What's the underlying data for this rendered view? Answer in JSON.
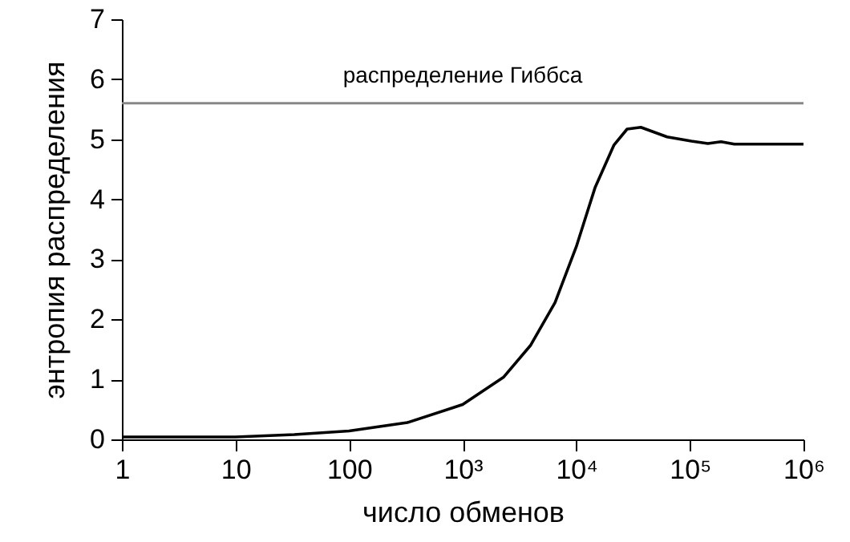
{
  "chart_data": {
    "type": "line",
    "xlabel": "число обменов",
    "ylabel": "энтропия  распределения",
    "x": [
      1,
      10,
      33,
      100,
      326,
      1000,
      2300,
      3970,
      6500,
      10000,
      14600,
      21400,
      28000,
      37000,
      63000,
      103000,
      144000,
      188000,
      246000,
      1000000
    ],
    "values": [
      0.04,
      0.04,
      0.08,
      0.14,
      0.28,
      0.58,
      1.04,
      1.57,
      2.28,
      3.21,
      4.19,
      4.9,
      5.17,
      5.2,
      5.04,
      4.97,
      4.93,
      4.96,
      4.92,
      4.92
    ],
    "color": "#000000",
    "log": "x",
    "xlim": [
      1,
      1000000
    ],
    "xticks": [
      1,
      10,
      100,
      {
        "value": 1000,
        "label": "10³"
      },
      {
        "value": 10000,
        "label": "10⁴"
      },
      {
        "value": 100000,
        "label": "10⁵"
      },
      {
        "value": 1000000,
        "label": "10⁶"
      }
    ],
    "ylim": [
      0,
      7
    ],
    "yticks": [
      0,
      1,
      2,
      3,
      4,
      5,
      6,
      7
    ],
    "ref_lines": [
      {
        "axis": "y",
        "value": 5.6,
        "label": "распределение Гиббса",
        "color": "#888888"
      }
    ],
    "grid": false
  }
}
